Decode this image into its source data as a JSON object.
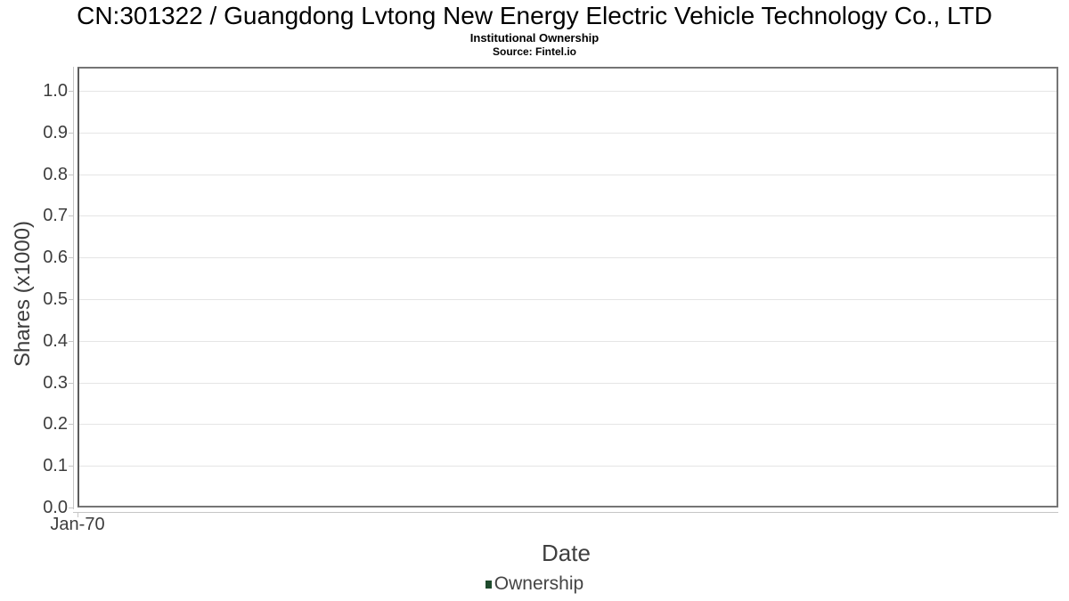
{
  "header": {
    "title": "CN:301322 / Guangdong Lvtong New Energy Electric Vehicle Technology Co., LTD",
    "subtitle": "Institutional Ownership",
    "source": "Source: Fintel.io"
  },
  "chart_data": {
    "type": "line",
    "title": "CN:301322 / Guangdong Lvtong New Energy Electric Vehicle Technology Co., LTD",
    "subtitle": "Institutional Ownership",
    "source": "Source: Fintel.io",
    "x": [],
    "series": [
      {
        "name": "Ownership",
        "color": "#1e4a2c",
        "values": []
      }
    ],
    "xlabel": "Date",
    "ylabel": "Shares (x1000)",
    "ylim": [
      0,
      1.058
    ],
    "yticks": [
      0.0,
      0.1,
      0.2,
      0.3,
      0.4,
      0.5,
      0.6,
      0.7,
      0.8,
      0.9,
      1.0
    ],
    "ytick_labels": [
      "0.0",
      "0.1",
      "0.2",
      "0.3",
      "0.4",
      "0.5",
      "0.6",
      "0.7",
      "0.8",
      "0.9",
      "1.0"
    ],
    "xtick_labels": [
      "Jan-70"
    ],
    "grid": "on",
    "legend_position": "bottom",
    "plot_is_empty": true
  },
  "colors": {
    "series_green": "#1e4a2c",
    "grid": "#e5e5e5",
    "plot_border": "#757575",
    "axis_line": "#c6c6c6",
    "tick_text": "#3d3d3d"
  }
}
